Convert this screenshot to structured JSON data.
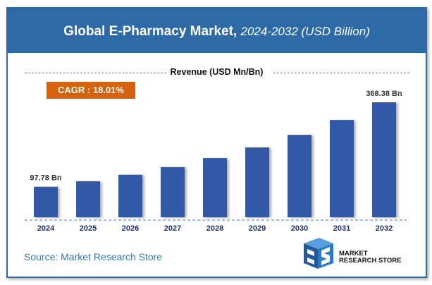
{
  "header": {
    "title": "Global E-Pharmacy Market,",
    "subtitle": "2024-2032 (USD Billion)"
  },
  "revenue_label": "Revenue (USD Mn/Bn)",
  "cagr": "CAGR : 18.01%",
  "source": "Source: Market Research Store",
  "logo": {
    "line1": "MARKET",
    "line2": "RESEARCH STORE"
  },
  "colors": {
    "header": "#2E6AA6",
    "bar": "#3358A8",
    "cagr": "#D5620F",
    "year_label": "#1F2F6E",
    "source": "#3A78B5"
  },
  "chart_data": {
    "type": "bar",
    "categories": [
      "2024",
      "2025",
      "2026",
      "2027",
      "2028",
      "2029",
      "2030",
      "2031",
      "2032"
    ],
    "values": [
      97.78,
      115.4,
      136.2,
      160.7,
      189.6,
      223.8,
      264.1,
      311.6,
      368.38
    ],
    "data_labels": {
      "0": "97.78 Bn",
      "8": "368.38 Bn"
    },
    "title": "Global E-Pharmacy Market, 2024-2032 (USD Billion)",
    "ylabel": "Revenue (USD Mn/Bn)",
    "grid": false
  }
}
